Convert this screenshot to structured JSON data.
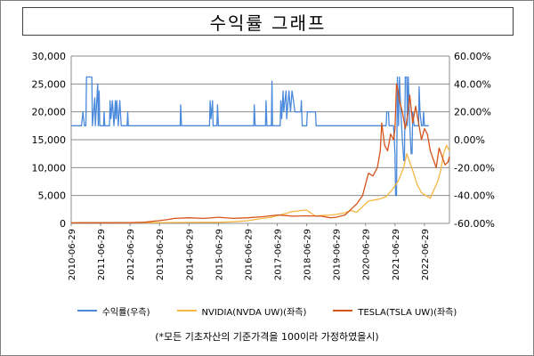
{
  "chart_data": {
    "type": "line",
    "title": "수익률 그래프",
    "footnote": "(*모든 기초자산의 기준가격을 100이라 가정하였을시)",
    "grid": true,
    "legend_position": "bottom",
    "y_left": {
      "ylim": [
        0,
        30000
      ],
      "ticks": [
        "0",
        "5,000",
        "10,000",
        "15,000",
        "20,000",
        "25,000",
        "30,000"
      ]
    },
    "y_right": {
      "ylim": [
        -60,
        60
      ],
      "ticks": [
        "-60.00%",
        "-40.00%",
        "-20.00%",
        "0.00%",
        "20.00%",
        "40.00%",
        "60.00%"
      ]
    },
    "x_ticks": [
      "2010-06-29",
      "2011-06-29",
      "2012-06-29",
      "2013-06-29",
      "2014-06-29",
      "2015-06-29",
      "2016-06-29",
      "2017-06-29",
      "2018-06-29",
      "2019-06-29",
      "2020-06-29",
      "2021-06-29",
      "2022-06-29"
    ],
    "series": [
      {
        "name": "수익률(우측)",
        "axis": "right",
        "color": "#4a89dc",
        "points": [
          [
            2010.5,
            10
          ],
          [
            2010.85,
            10
          ],
          [
            2010.9,
            20
          ],
          [
            2010.95,
            10
          ],
          [
            2011.0,
            10
          ],
          [
            2011.02,
            45
          ],
          [
            2011.2,
            45
          ],
          [
            2011.22,
            10
          ],
          [
            2011.3,
            30
          ],
          [
            2011.32,
            10
          ],
          [
            2011.4,
            40
          ],
          [
            2011.42,
            10
          ],
          [
            2011.45,
            35
          ],
          [
            2011.47,
            10
          ],
          [
            2011.6,
            10
          ],
          [
            2011.62,
            20
          ],
          [
            2011.64,
            10
          ],
          [
            2011.8,
            10
          ],
          [
            2011.82,
            28
          ],
          [
            2011.85,
            15
          ],
          [
            2011.9,
            28
          ],
          [
            2011.95,
            10
          ],
          [
            2012.0,
            28
          ],
          [
            2012.02,
            15
          ],
          [
            2012.05,
            28
          ],
          [
            2012.1,
            10
          ],
          [
            2012.15,
            28
          ],
          [
            2012.2,
            10
          ],
          [
            2012.4,
            10
          ],
          [
            2012.42,
            20
          ],
          [
            2012.44,
            10
          ],
          [
            2013.0,
            10
          ],
          [
            2014.0,
            10
          ],
          [
            2014.2,
            10
          ],
          [
            2014.22,
            25
          ],
          [
            2014.25,
            10
          ],
          [
            2015.0,
            10
          ],
          [
            2015.2,
            10
          ],
          [
            2015.22,
            28
          ],
          [
            2015.25,
            15
          ],
          [
            2015.3,
            28
          ],
          [
            2015.32,
            10
          ],
          [
            2015.45,
            10
          ],
          [
            2015.47,
            25
          ],
          [
            2015.5,
            10
          ],
          [
            2016.0,
            10
          ],
          [
            2016.7,
            10
          ],
          [
            2016.72,
            25
          ],
          [
            2016.75,
            10
          ],
          [
            2017.0,
            10
          ],
          [
            2017.1,
            10
          ],
          [
            2017.12,
            28
          ],
          [
            2017.15,
            10
          ],
          [
            2017.3,
            10
          ],
          [
            2017.32,
            42
          ],
          [
            2017.34,
            10
          ],
          [
            2017.6,
            10
          ],
          [
            2017.62,
            28
          ],
          [
            2017.65,
            15
          ],
          [
            2017.7,
            35
          ],
          [
            2017.72,
            20
          ],
          [
            2017.8,
            35
          ],
          [
            2017.82,
            15
          ],
          [
            2017.9,
            35
          ],
          [
            2017.95,
            20
          ],
          [
            2018.0,
            35
          ],
          [
            2018.05,
            28
          ],
          [
            2018.1,
            20
          ],
          [
            2018.3,
            20
          ],
          [
            2018.32,
            28
          ],
          [
            2018.35,
            10
          ],
          [
            2018.5,
            10
          ],
          [
            2018.52,
            20
          ],
          [
            2018.8,
            20
          ],
          [
            2018.82,
            10
          ],
          [
            2019.0,
            10
          ],
          [
            2019.5,
            10
          ],
          [
            2020.0,
            10
          ],
          [
            2020.5,
            10
          ],
          [
            2021.0,
            10
          ],
          [
            2021.2,
            10
          ],
          [
            2021.22,
            20
          ],
          [
            2021.28,
            20
          ],
          [
            2021.3,
            10
          ],
          [
            2021.45,
            10
          ],
          [
            2021.5,
            -10
          ],
          [
            2021.52,
            -40
          ],
          [
            2021.55,
            -40
          ],
          [
            2021.58,
            45
          ],
          [
            2021.62,
            10
          ],
          [
            2021.65,
            45
          ],
          [
            2021.7,
            20
          ],
          [
            2021.75,
            0
          ],
          [
            2021.8,
            -15
          ],
          [
            2021.82,
            -15
          ],
          [
            2021.85,
            45
          ],
          [
            2021.9,
            45
          ],
          [
            2021.92,
            10
          ],
          [
            2021.95,
            45
          ],
          [
            2022.0,
            10
          ],
          [
            2022.05,
            -10
          ],
          [
            2022.08,
            -10
          ],
          [
            2022.1,
            20
          ],
          [
            2022.15,
            10
          ],
          [
            2022.3,
            10
          ],
          [
            2022.32,
            38
          ],
          [
            2022.35,
            20
          ],
          [
            2022.4,
            10
          ],
          [
            2022.45,
            10
          ],
          [
            2022.47,
            20
          ],
          [
            2022.5,
            10
          ],
          [
            2022.65,
            10
          ]
        ]
      },
      {
        "name": "NVIDIA(NVDA UW)(좌측)",
        "axis": "left",
        "color": "#f5b642",
        "points": [
          [
            2010.5,
            100
          ],
          [
            2011.0,
            150
          ],
          [
            2011.5,
            110
          ],
          [
            2012.0,
            120
          ],
          [
            2012.5,
            110
          ],
          [
            2013.0,
            120
          ],
          [
            2013.5,
            130
          ],
          [
            2014.0,
            160
          ],
          [
            2014.5,
            170
          ],
          [
            2015.0,
            190
          ],
          [
            2015.5,
            190
          ],
          [
            2016.0,
            280
          ],
          [
            2016.5,
            480
          ],
          [
            2017.0,
            900
          ],
          [
            2017.3,
            1100
          ],
          [
            2017.5,
            1400
          ],
          [
            2017.8,
            1800
          ],
          [
            2018.0,
            2100
          ],
          [
            2018.3,
            2300
          ],
          [
            2018.5,
            2400
          ],
          [
            2018.8,
            1300
          ],
          [
            2019.0,
            1400
          ],
          [
            2019.3,
            1500
          ],
          [
            2019.5,
            1600
          ],
          [
            2019.8,
            1900
          ],
          [
            2020.0,
            2300
          ],
          [
            2020.2,
            2000
          ],
          [
            2020.4,
            3000
          ],
          [
            2020.6,
            4000
          ],
          [
            2020.8,
            4200
          ],
          [
            2021.0,
            4400
          ],
          [
            2021.2,
            4800
          ],
          [
            2021.4,
            6000
          ],
          [
            2021.6,
            7500
          ],
          [
            2021.8,
            10000
          ],
          [
            2021.9,
            12500
          ],
          [
            2022.0,
            11000
          ],
          [
            2022.1,
            9500
          ],
          [
            2022.25,
            7000
          ],
          [
            2022.4,
            5500
          ],
          [
            2022.55,
            5000
          ],
          [
            2022.7,
            4500
          ],
          [
            2022.8,
            5800
          ],
          [
            2022.95,
            7500
          ],
          [
            2023.05,
            9500
          ],
          [
            2023.15,
            12500
          ],
          [
            2023.25,
            14000
          ],
          [
            2023.35,
            13000
          ]
        ]
      },
      {
        "name": "TESLA(TSLA UW)(좌측)",
        "axis": "left",
        "color": "#d4541a",
        "points": [
          [
            2010.5,
            100
          ],
          [
            2011.0,
            120
          ],
          [
            2011.5,
            110
          ],
          [
            2012.0,
            130
          ],
          [
            2012.5,
            150
          ],
          [
            2013.0,
            200
          ],
          [
            2013.3,
            400
          ],
          [
            2013.5,
            500
          ],
          [
            2013.8,
            700
          ],
          [
            2014.0,
            900
          ],
          [
            2014.5,
            1000
          ],
          [
            2015.0,
            900
          ],
          [
            2015.5,
            1100
          ],
          [
            2016.0,
            900
          ],
          [
            2016.5,
            1000
          ],
          [
            2017.0,
            1200
          ],
          [
            2017.5,
            1500
          ],
          [
            2017.8,
            1400
          ],
          [
            2018.0,
            1300
          ],
          [
            2018.5,
            1350
          ],
          [
            2019.0,
            1300
          ],
          [
            2019.3,
            1000
          ],
          [
            2019.5,
            1100
          ],
          [
            2019.8,
            1500
          ],
          [
            2020.0,
            2500
          ],
          [
            2020.2,
            3500
          ],
          [
            2020.4,
            5000
          ],
          [
            2020.5,
            7000
          ],
          [
            2020.6,
            9000
          ],
          [
            2020.75,
            8500
          ],
          [
            2020.9,
            10000
          ],
          [
            2021.0,
            13000
          ],
          [
            2021.05,
            18000
          ],
          [
            2021.15,
            14000
          ],
          [
            2021.25,
            13000
          ],
          [
            2021.35,
            16000
          ],
          [
            2021.45,
            15000
          ],
          [
            2021.5,
            17000
          ],
          [
            2021.55,
            25000
          ],
          [
            2021.6,
            24000
          ],
          [
            2021.65,
            22000
          ],
          [
            2021.75,
            20000
          ],
          [
            2021.85,
            17000
          ],
          [
            2021.95,
            20000
          ],
          [
            2022.0,
            23000
          ],
          [
            2022.1,
            18000
          ],
          [
            2022.2,
            21000
          ],
          [
            2022.3,
            18000
          ],
          [
            2022.4,
            15000
          ],
          [
            2022.5,
            17000
          ],
          [
            2022.6,
            16000
          ],
          [
            2022.7,
            13000
          ],
          [
            2022.8,
            11500
          ],
          [
            2022.9,
            10000
          ],
          [
            2023.0,
            13500
          ],
          [
            2023.1,
            12000
          ],
          [
            2023.2,
            10500
          ],
          [
            2023.3,
            11000
          ],
          [
            2023.35,
            12000
          ]
        ]
      }
    ]
  }
}
